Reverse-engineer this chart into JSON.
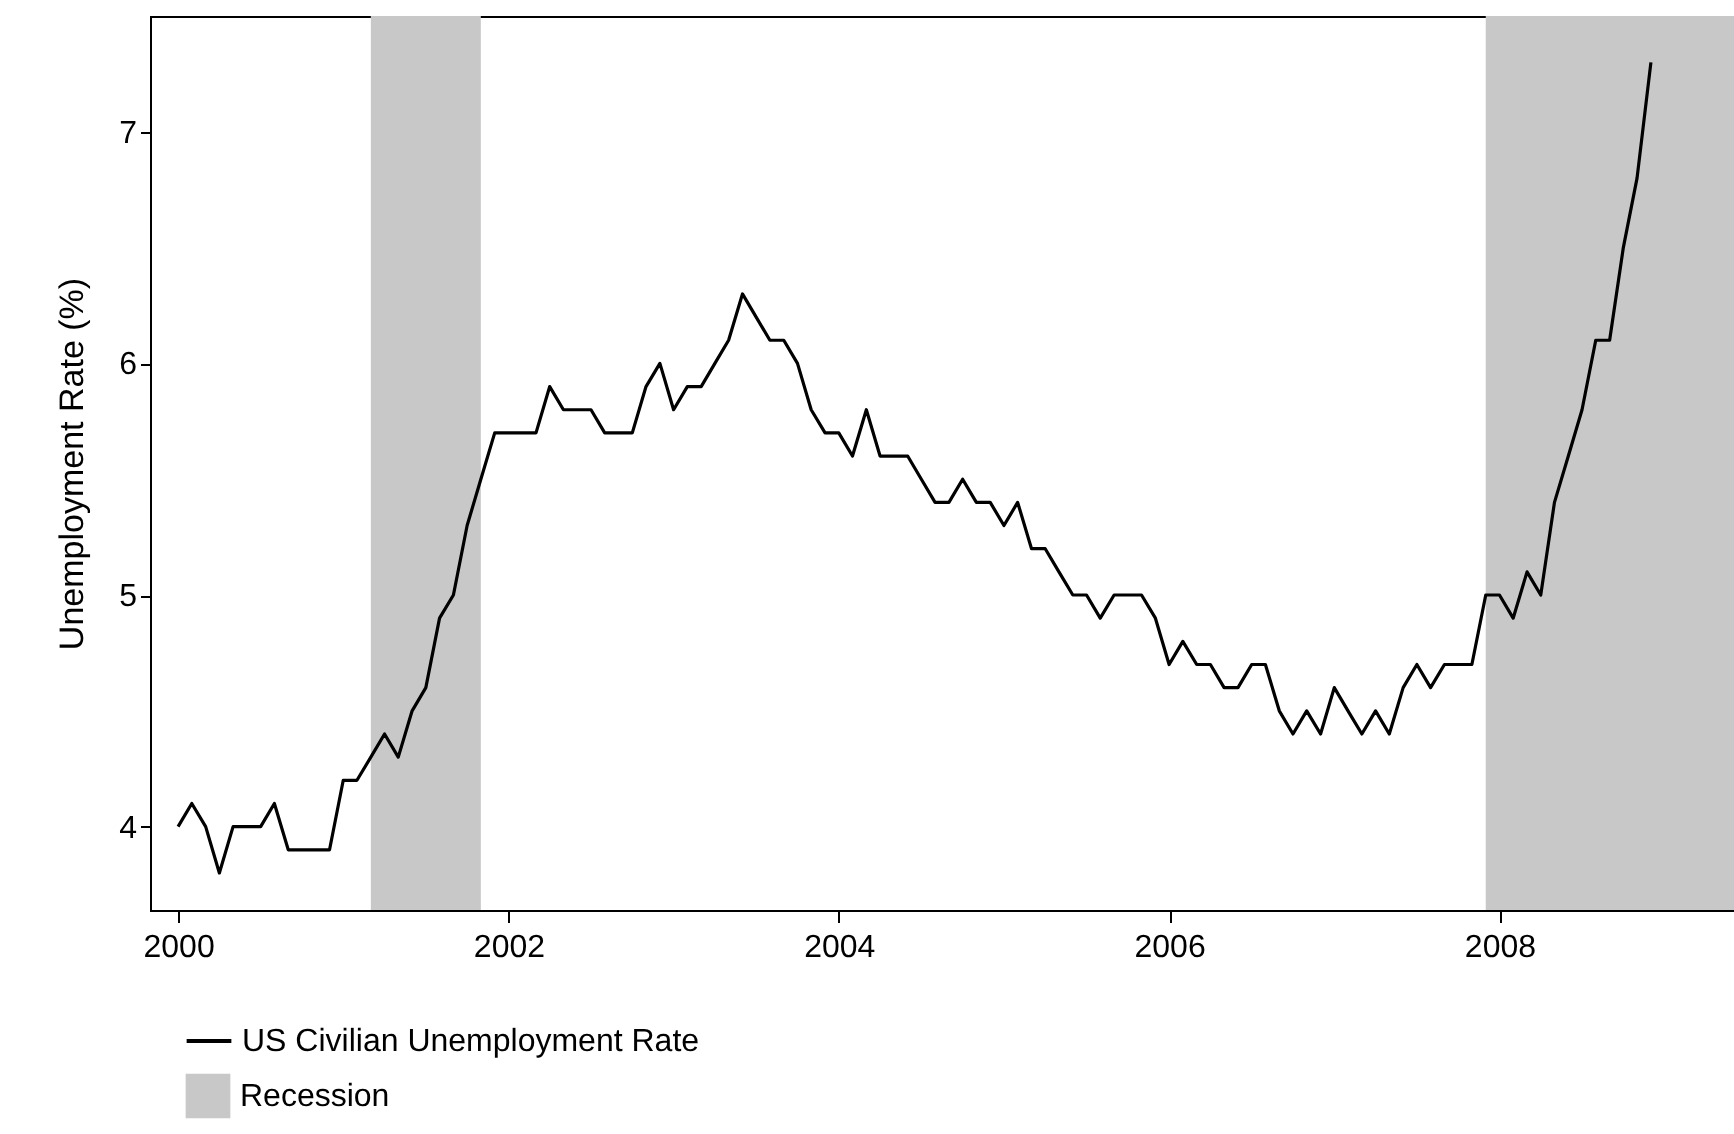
{
  "chart_data": {
    "type": "line",
    "ylabel": "Unemployment Rate (%)",
    "xlim": [
      1999.83,
      2009.42
    ],
    "xticks": [
      2000,
      2002,
      2004,
      2006,
      2008
    ],
    "ylim": [
      3.64,
      7.5
    ],
    "yticks": [
      4,
      5,
      6,
      7
    ],
    "grid": false,
    "legend": "bottom left",
    "marker": "none",
    "line_style": "solid",
    "series": [
      {
        "name": "US Civilian Unemployment Rate",
        "color": "#000000",
        "x": [
          2000,
          2000.083,
          2000.167,
          2000.25,
          2000.333,
          2000.417,
          2000.5,
          2000.583,
          2000.667,
          2000.75,
          2000.833,
          2000.917,
          2001,
          2001.083,
          2001.167,
          2001.25,
          2001.333,
          2001.417,
          2001.5,
          2001.583,
          2001.667,
          2001.75,
          2001.833,
          2001.917,
          2002,
          2002.083,
          2002.167,
          2002.25,
          2002.333,
          2002.417,
          2002.5,
          2002.583,
          2002.667,
          2002.75,
          2002.833,
          2002.917,
          2003,
          2003.083,
          2003.167,
          2003.25,
          2003.333,
          2003.417,
          2003.5,
          2003.583,
          2003.667,
          2003.75,
          2003.833,
          2003.917,
          2004,
          2004.083,
          2004.167,
          2004.25,
          2004.333,
          2004.417,
          2004.5,
          2004.583,
          2004.667,
          2004.75,
          2004.833,
          2004.917,
          2005,
          2005.083,
          2005.167,
          2005.25,
          2005.333,
          2005.417,
          2005.5,
          2005.583,
          2005.667,
          2005.75,
          2005.833,
          2005.917,
          2006,
          2006.083,
          2006.167,
          2006.25,
          2006.333,
          2006.417,
          2006.5,
          2006.583,
          2006.667,
          2006.75,
          2006.833,
          2006.917,
          2007,
          2007.083,
          2007.167,
          2007.25,
          2007.333,
          2007.417,
          2007.5,
          2007.583,
          2007.667,
          2007.75,
          2007.833,
          2007.917,
          2008,
          2008.083,
          2008.167,
          2008.25,
          2008.333,
          2008.417,
          2008.5,
          2008.583,
          2008.667,
          2008.75,
          2008.833,
          2008.917
        ],
        "values": [
          4.0,
          4.1,
          4.0,
          3.8,
          4.0,
          4.0,
          4.0,
          4.1,
          3.9,
          3.9,
          3.9,
          3.9,
          4.2,
          4.2,
          4.3,
          4.4,
          4.3,
          4.5,
          4.6,
          4.9,
          5.0,
          5.3,
          5.5,
          5.7,
          5.7,
          5.7,
          5.7,
          5.9,
          5.8,
          5.8,
          5.8,
          5.7,
          5.7,
          5.7,
          5.9,
          6.0,
          5.8,
          5.9,
          5.9,
          6.0,
          6.1,
          6.3,
          6.2,
          6.1,
          6.1,
          6.0,
          5.8,
          5.7,
          5.7,
          5.6,
          5.8,
          5.6,
          5.6,
          5.6,
          5.5,
          5.4,
          5.4,
          5.5,
          5.4,
          5.4,
          5.3,
          5.4,
          5.2,
          5.2,
          5.1,
          5.0,
          5.0,
          4.9,
          5.0,
          5.0,
          5.0,
          4.9,
          4.7,
          4.8,
          4.7,
          4.7,
          4.6,
          4.6,
          4.7,
          4.7,
          4.5,
          4.4,
          4.5,
          4.4,
          4.6,
          4.5,
          4.4,
          4.5,
          4.4,
          4.6,
          4.7,
          4.6,
          4.7,
          4.7,
          4.7,
          5.0,
          5.0,
          4.9,
          5.1,
          5.0,
          5.4,
          5.6,
          5.8,
          6.1,
          6.1,
          6.5,
          6.8,
          7.3
        ]
      }
    ],
    "bands": [
      {
        "axis": "x",
        "from": 2001.167,
        "to": 2001.833,
        "label": "Recession",
        "color": "#c8c8c8"
      },
      {
        "axis": "x",
        "from": 2007.917,
        "to": 2009.42,
        "color": "#c8c8c8"
      }
    ]
  }
}
